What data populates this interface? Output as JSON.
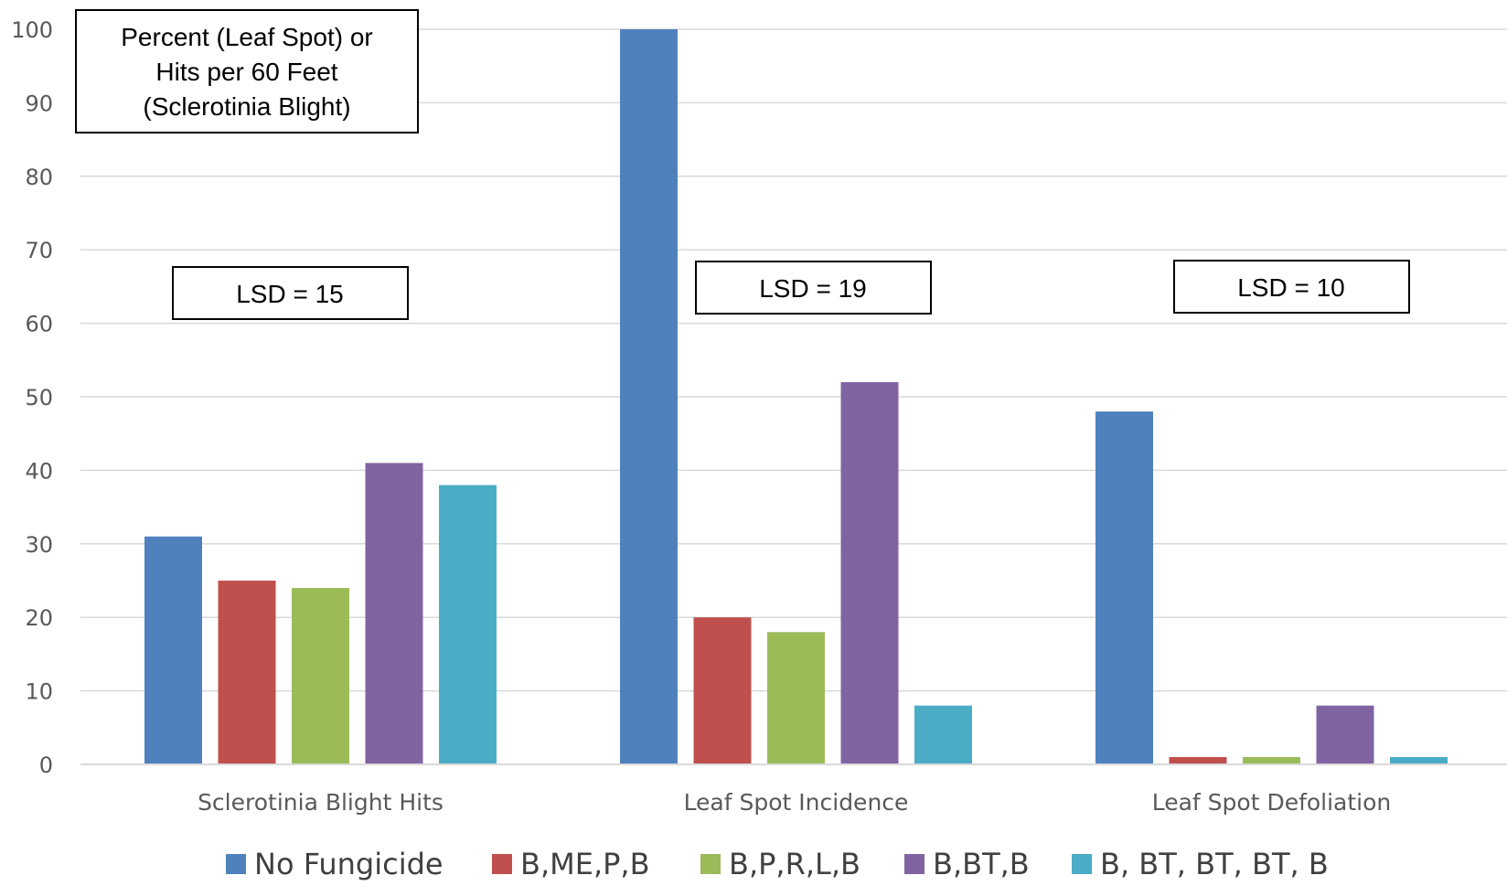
{
  "chart_data": {
    "type": "bar",
    "categories": [
      "Sclerotinia Blight Hits",
      "Leaf Spot Incidence",
      "Leaf Spot Defoliation"
    ],
    "series": [
      {
        "name": "No Fungicide",
        "color": "#4F81BD",
        "values": [
          31,
          100,
          48
        ]
      },
      {
        "name": "B,ME,P,B",
        "color": "#C0504D",
        "values": [
          25,
          20,
          1
        ]
      },
      {
        "name": "B,P,R,L,B",
        "color": "#9BBB59",
        "values": [
          24,
          18,
          1
        ]
      },
      {
        "name": "B,BT,B",
        "color": "#8064A2",
        "values": [
          41,
          52,
          8
        ]
      },
      {
        "name": "B, BT, BT, BT, B",
        "color": "#4BACC6",
        "values": [
          38,
          8,
          1
        ]
      }
    ],
    "ylim": [
      0,
      100
    ],
    "yticks": [
      0,
      10,
      20,
      30,
      40,
      50,
      60,
      70,
      80,
      90,
      100
    ],
    "grid": true,
    "legend_position": "bottom",
    "ylabel_box": [
      "Percent (Leaf Spot) or",
      "Hits per 60 Feet",
      "(Sclerotinia Blight)"
    ],
    "annotations": [
      "LSD = 15",
      "LSD = 19",
      "LSD = 10"
    ]
  }
}
